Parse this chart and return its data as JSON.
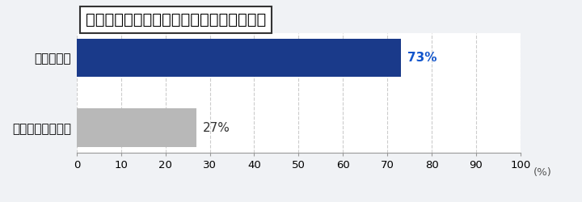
{
  "title": "申込時点でみずほ銀行口座は持っていたか",
  "categories": [
    "持っていなかった",
    "持っていた"
  ],
  "values": [
    27,
    73
  ],
  "bar_colors": [
    "#b8b8b8",
    "#1a3a8a"
  ],
  "label_colors": [
    "#333333",
    "#1155cc"
  ],
  "value_labels": [
    "27%",
    "73%"
  ],
  "xlim": [
    0,
    100
  ],
  "xticks": [
    0,
    10,
    20,
    30,
    40,
    50,
    60,
    70,
    80,
    90,
    100
  ],
  "xlabel": "(%)",
  "background_color": "#f0f2f5",
  "plot_bg_color": "#ffffff",
  "grid_color": "#cccccc",
  "bar_height": 0.55,
  "title_fontsize": 14,
  "label_fontsize": 11,
  "tick_fontsize": 9.5,
  "value_fontsize": 11
}
